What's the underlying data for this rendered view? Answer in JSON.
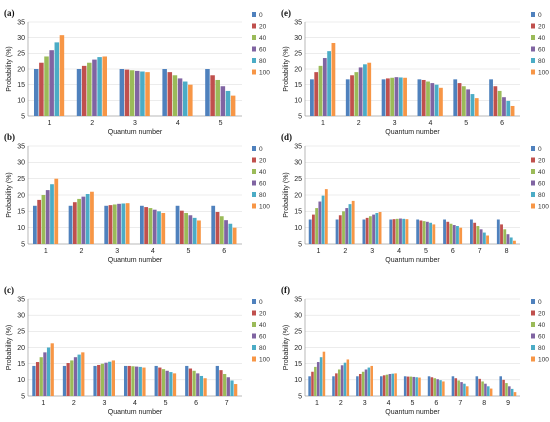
{
  "chart_data": [
    {
      "type": "bar",
      "panel_label": "(a)",
      "categories": [
        "1",
        "2",
        "3",
        "4",
        "5"
      ],
      "series": [
        {
          "name": "0",
          "values": [
            20.0,
            20.0,
            20.0,
            20.0,
            20.0
          ]
        },
        {
          "name": "20",
          "values": [
            22.0,
            21.0,
            19.8,
            19.0,
            18.0
          ]
        },
        {
          "name": "40",
          "values": [
            24.0,
            22.0,
            19.6,
            18.0,
            16.5
          ]
        },
        {
          "name": "60",
          "values": [
            26.0,
            23.0,
            19.4,
            17.0,
            14.5
          ]
        },
        {
          "name": "80",
          "values": [
            28.5,
            23.8,
            19.2,
            16.0,
            13.0
          ]
        },
        {
          "name": "100",
          "values": [
            30.8,
            24.0,
            19.0,
            15.0,
            11.5
          ]
        }
      ],
      "xlabel": "Quantum number",
      "ylabel": "Probability (%)",
      "ylim": [
        5,
        35
      ],
      "yticks": [
        5,
        10,
        15,
        20,
        25,
        30,
        35
      ],
      "grid": true,
      "legend": "right"
    },
    {
      "type": "bar",
      "panel_label": "(e)",
      "categories": [
        "1",
        "2",
        "3",
        "4",
        "5",
        "6"
      ],
      "series": [
        {
          "name": "0",
          "values": [
            16.7,
            16.7,
            16.7,
            16.7,
            16.7,
            16.7
          ]
        },
        {
          "name": "20",
          "values": [
            19.0,
            18.0,
            17.0,
            16.5,
            15.5,
            14.5
          ]
        },
        {
          "name": "40",
          "values": [
            21.0,
            19.0,
            17.2,
            16.0,
            14.5,
            13.0
          ]
        },
        {
          "name": "60",
          "values": [
            23.5,
            20.5,
            17.4,
            15.5,
            13.5,
            11.0
          ]
        },
        {
          "name": "80",
          "values": [
            25.7,
            21.5,
            17.3,
            15.0,
            12.0,
            9.8
          ]
        },
        {
          "name": "100",
          "values": [
            28.3,
            22.0,
            17.2,
            14.0,
            10.7,
            8.2
          ]
        }
      ],
      "xlabel": "Quantum number",
      "ylabel": "Probability (%)",
      "ylim": [
        5,
        35
      ],
      "yticks": [
        5,
        10,
        15,
        20,
        25,
        30,
        35
      ],
      "grid": true,
      "legend": "right"
    },
    {
      "type": "bar",
      "panel_label": "(b)",
      "categories": [
        "1",
        "2",
        "3",
        "4",
        "5",
        "6"
      ],
      "series": [
        {
          "name": "0",
          "values": [
            16.7,
            16.7,
            16.7,
            16.7,
            16.7,
            16.7
          ]
        },
        {
          "name": "20",
          "values": [
            18.5,
            17.8,
            16.9,
            16.3,
            15.2,
            14.8
          ]
        },
        {
          "name": "40",
          "values": [
            20.0,
            18.8,
            17.1,
            16.0,
            14.5,
            13.5
          ]
        },
        {
          "name": "60",
          "values": [
            21.5,
            19.5,
            17.3,
            15.5,
            13.8,
            12.3
          ]
        },
        {
          "name": "80",
          "values": [
            23.3,
            20.3,
            17.4,
            15.0,
            13.0,
            11.2
          ]
        },
        {
          "name": "100",
          "values": [
            25.0,
            21.0,
            17.5,
            14.5,
            12.2,
            10.0
          ]
        }
      ],
      "xlabel": "Quantum number",
      "ylabel": "Probability (%)",
      "ylim": [
        5,
        35
      ],
      "yticks": [
        5,
        10,
        15,
        20,
        25,
        30,
        35
      ],
      "grid": true,
      "legend": "right"
    },
    {
      "type": "bar",
      "panel_label": "(d)",
      "categories": [
        "1",
        "2",
        "3",
        "4",
        "5",
        "6",
        "7",
        "8"
      ],
      "series": [
        {
          "name": "0",
          "values": [
            12.5,
            12.5,
            12.5,
            12.5,
            12.5,
            12.5,
            12.5,
            12.5
          ]
        },
        {
          "name": "20",
          "values": [
            14.0,
            13.8,
            13.0,
            12.6,
            12.2,
            11.8,
            11.5,
            11.0
          ]
        },
        {
          "name": "40",
          "values": [
            16.0,
            15.0,
            13.5,
            12.7,
            12.0,
            11.2,
            10.5,
            9.5
          ]
        },
        {
          "name": "60",
          "values": [
            18.0,
            16.0,
            14.0,
            12.8,
            11.8,
            10.8,
            9.5,
            8.0
          ]
        },
        {
          "name": "80",
          "values": [
            19.8,
            17.2,
            14.5,
            12.7,
            11.5,
            10.5,
            8.5,
            7.0
          ]
        },
        {
          "name": "100",
          "values": [
            21.8,
            18.2,
            14.8,
            12.6,
            11.0,
            10.0,
            7.6,
            6.0
          ]
        }
      ],
      "xlabel": "Quantum number",
      "ylabel": "Probability (%)",
      "ylim": [
        5,
        35
      ],
      "yticks": [
        5,
        10,
        15,
        20,
        25,
        30,
        35
      ],
      "grid": true,
      "legend": "right"
    },
    {
      "type": "bar",
      "panel_label": "(c)",
      "categories": [
        "1",
        "2",
        "3",
        "4",
        "5",
        "6",
        "7"
      ],
      "series": [
        {
          "name": "0",
          "values": [
            14.3,
            14.3,
            14.3,
            14.3,
            14.3,
            14.3,
            14.3
          ]
        },
        {
          "name": "20",
          "values": [
            15.5,
            15.2,
            14.6,
            14.3,
            13.8,
            13.5,
            13.0
          ]
        },
        {
          "name": "40",
          "values": [
            17.0,
            16.0,
            15.0,
            14.2,
            13.3,
            12.8,
            11.8
          ]
        },
        {
          "name": "60",
          "values": [
            18.5,
            17.0,
            15.3,
            14.1,
            12.8,
            12.0,
            10.8
          ]
        },
        {
          "name": "80",
          "values": [
            20.0,
            17.8,
            15.6,
            14.0,
            12.4,
            11.2,
            9.8
          ]
        },
        {
          "name": "100",
          "values": [
            21.3,
            18.5,
            16.0,
            13.8,
            12.0,
            10.5,
            8.7
          ]
        }
      ],
      "xlabel": "Quantum number",
      "ylabel": "Probability (%)",
      "ylim": [
        5,
        35
      ],
      "yticks": [
        5,
        10,
        15,
        20,
        25,
        30,
        35
      ],
      "grid": true,
      "legend": "right"
    },
    {
      "type": "bar",
      "panel_label": "(f)",
      "categories": [
        "1",
        "2",
        "3",
        "4",
        "5",
        "6",
        "7",
        "8",
        "9"
      ],
      "series": [
        {
          "name": "0",
          "values": [
            11.1,
            11.1,
            11.1,
            11.1,
            11.1,
            11.1,
            11.1,
            11.1,
            11.1
          ]
        },
        {
          "name": "20",
          "values": [
            12.5,
            12.0,
            11.8,
            11.4,
            11.0,
            10.8,
            10.5,
            10.3,
            10.0
          ]
        },
        {
          "name": "40",
          "values": [
            14.0,
            13.2,
            12.5,
            11.6,
            11.0,
            10.5,
            9.8,
            9.5,
            9.0
          ]
        },
        {
          "name": "60",
          "values": [
            15.5,
            14.5,
            13.2,
            11.8,
            10.9,
            10.2,
            9.3,
            8.8,
            8.0
          ]
        },
        {
          "name": "80",
          "values": [
            17.0,
            15.3,
            13.8,
            11.9,
            10.8,
            9.9,
            8.8,
            8.0,
            7.2
          ]
        },
        {
          "name": "100",
          "values": [
            18.7,
            16.3,
            14.3,
            12.0,
            10.7,
            9.5,
            8.0,
            7.3,
            6.2
          ]
        }
      ],
      "xlabel": "Quantum number",
      "ylabel": "Probability (%)",
      "ylim": [
        5,
        35
      ],
      "yticks": [
        5,
        10,
        15,
        20,
        25,
        30,
        35
      ],
      "grid": true,
      "legend": "right"
    }
  ],
  "colors": {
    "series": [
      "#4f81bd",
      "#c0504d",
      "#9bbb59",
      "#8064a2",
      "#4bacc6",
      "#f79646"
    ]
  }
}
